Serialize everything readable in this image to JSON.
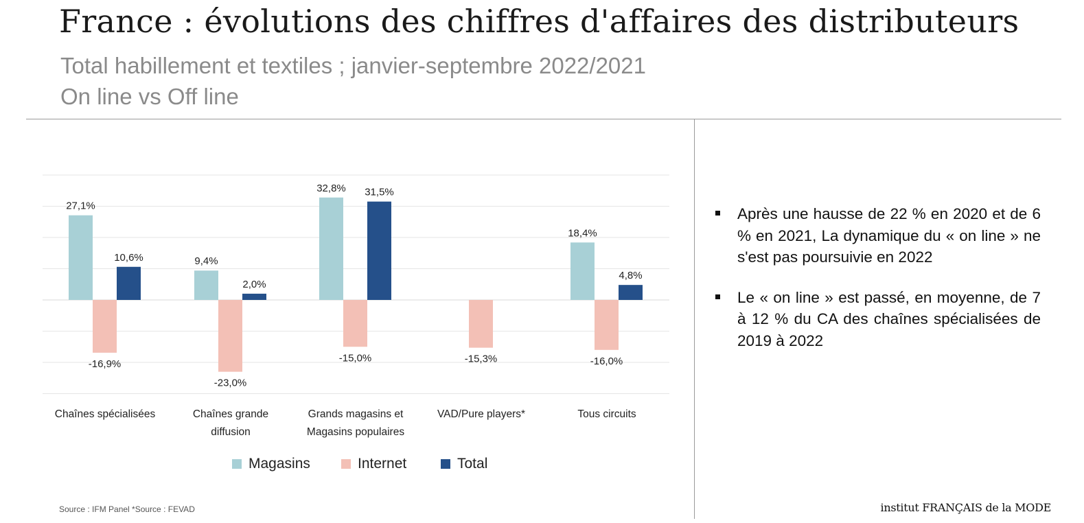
{
  "header": {
    "title": "France : évolutions des chiffres d'affaires des distributeurs",
    "subtitle_line1": "Total habillement et textiles ; janvier-septembre 2022/2021",
    "subtitle_line2": "On line vs Off line"
  },
  "chart_data": {
    "type": "bar",
    "categories": [
      [
        "Chaînes spécialisées"
      ],
      [
        "Chaînes grande",
        "diffusion"
      ],
      [
        "Grands magasins et",
        "Magasins populaires"
      ],
      [
        "VAD/Pure players*"
      ],
      [
        "Tous circuits"
      ]
    ],
    "series": [
      {
        "name": "Magasins",
        "color": "#a8d0d6",
        "values": [
          27.1,
          9.4,
          32.8,
          null,
          18.4
        ],
        "labels": [
          "27,1%",
          "9,4%",
          "32,8%",
          "",
          "18,4%"
        ]
      },
      {
        "name": "Internet",
        "color": "#f3c0b6",
        "values": [
          -16.9,
          -23.0,
          -15.0,
          -15.3,
          -16.0
        ],
        "labels": [
          "-16,9%",
          "-23,0%",
          "-15,0%",
          "-15,3%",
          "-16,0%"
        ]
      },
      {
        "name": "Total",
        "color": "#25508a",
        "values": [
          10.6,
          2.0,
          31.5,
          null,
          4.8
        ],
        "labels": [
          "10,6%",
          "2,0%",
          "31,5%",
          "",
          "4,8%"
        ]
      }
    ],
    "ylim": [
      -30,
      40
    ],
    "gridlines": true,
    "legend_position": "bottom"
  },
  "bullets": [
    "Après une hausse de 22 % en 2020 et de 6 % en 2021, La dynamique du « on line » ne s'est pas poursuivie en 2022",
    "Le « on line » est passé, en moyenne, de 7 à 12 % du CA des chaînes spécialisées de 2019 à 2022"
  ],
  "footer": {
    "source": "Source : IFM Panel *Source : FEVAD",
    "logo": "institut FRANÇAIS de la MODE"
  }
}
